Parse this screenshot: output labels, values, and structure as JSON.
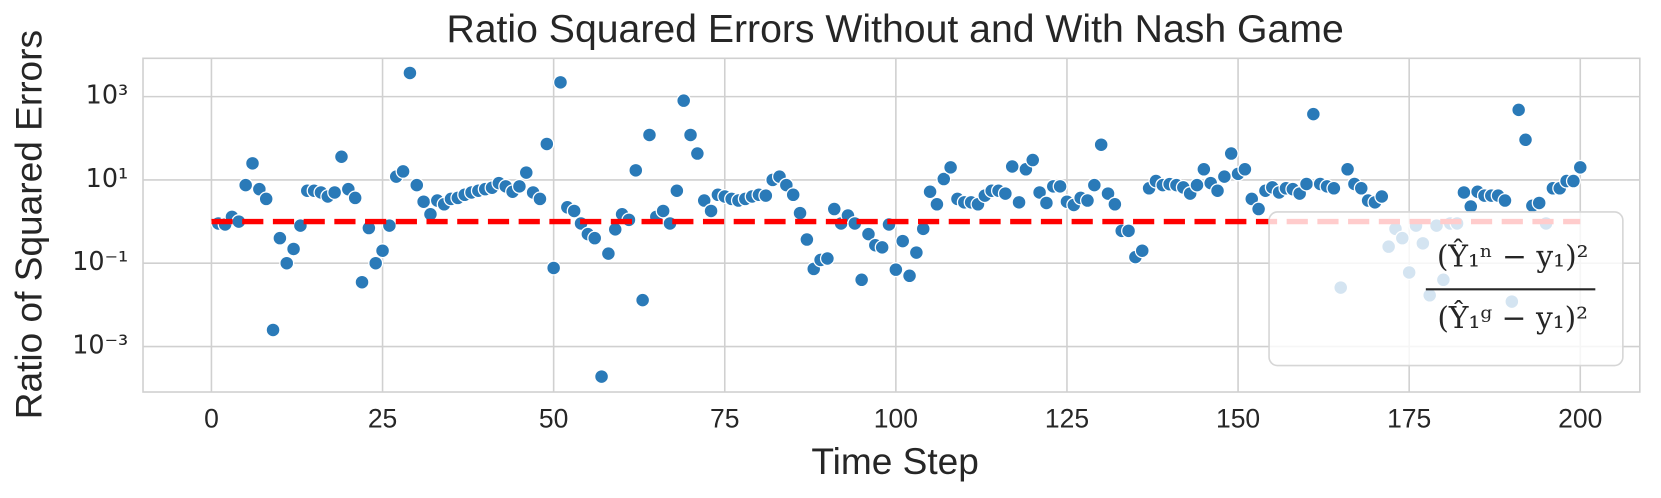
{
  "chart_data": {
    "type": "scatter",
    "title": "Ratio Squared Errors Without and With Nash Game",
    "x_label": "Time Step",
    "y_label": "Ratio of Squared Errors",
    "log_y": true,
    "grid": true,
    "xlim": [
      -10,
      208.7
    ],
    "ylim": [
      8.1e-05,
      8300
    ],
    "xticks": [
      0,
      25,
      50,
      75,
      100,
      125,
      150,
      175,
      200
    ],
    "yticks": [
      {
        "value": 0.001,
        "label": "10⁻³"
      },
      {
        "value": 0.1,
        "label": "10⁻¹"
      },
      {
        "value": 10,
        "label": "10¹"
      },
      {
        "value": 1000,
        "label": "10³"
      }
    ],
    "series": [
      {
        "color": "#2a7ab8",
        "x": [
          1,
          2,
          3,
          4,
          5,
          6,
          7,
          8,
          9,
          10,
          11,
          12,
          13,
          14,
          15,
          16,
          17,
          18,
          19,
          20,
          21,
          22,
          23,
          24,
          25,
          26,
          27,
          28,
          29,
          30,
          31,
          32,
          33,
          34,
          35,
          36,
          37,
          38,
          39,
          40,
          41,
          42,
          43,
          44,
          45,
          46,
          47,
          48,
          49,
          50,
          51,
          52,
          53,
          54,
          55,
          56,
          57,
          58,
          59,
          60,
          61,
          62,
          63,
          64,
          65,
          66,
          67,
          68,
          69,
          70,
          71,
          72,
          73,
          74,
          75,
          76,
          77,
          78,
          79,
          80,
          81,
          82,
          83,
          84,
          85,
          86,
          87,
          88,
          89,
          90,
          91,
          92,
          93,
          94,
          95,
          96,
          97,
          98,
          99,
          100,
          101,
          102,
          103,
          104,
          105,
          106,
          107,
          108,
          109,
          110,
          111,
          112,
          113,
          114,
          115,
          116,
          117,
          118,
          119,
          120,
          121,
          122,
          123,
          124,
          125,
          126,
          127,
          128,
          129,
          130,
          131,
          132,
          133,
          134,
          135,
          136,
          137,
          138,
          139,
          140,
          141,
          142,
          143,
          144,
          145,
          146,
          147,
          148,
          149,
          150,
          151,
          152,
          153,
          154,
          155,
          156,
          157,
          158,
          159,
          160,
          161,
          162,
          163,
          164,
          165,
          166,
          167,
          168,
          169,
          170,
          171,
          172,
          173,
          174,
          175,
          176,
          177,
          178,
          179,
          180,
          181,
          182,
          183,
          184,
          185,
          186,
          187,
          188,
          189,
          190,
          191,
          192,
          193,
          194,
          195,
          196,
          197,
          198,
          199,
          200
        ],
        "values": [
          0.9,
          0.85,
          1.3,
          1.0,
          7.5,
          25,
          6,
          3.5,
          0.0025,
          0.4,
          0.1,
          0.22,
          0.8,
          5.5,
          5.5,
          5,
          4,
          5,
          36,
          6,
          3.7,
          0.035,
          0.7,
          0.1,
          0.2,
          0.8,
          12,
          16,
          3700,
          7.5,
          3,
          1.5,
          3.2,
          2.6,
          3.5,
          3.7,
          4.4,
          5,
          5.5,
          6,
          6.5,
          8.4,
          7,
          5.2,
          7,
          15,
          5,
          3.5,
          73,
          0.077,
          2200,
          2.2,
          1.8,
          0.9,
          0.5,
          0.4,
          0.00019,
          0.17,
          0.65,
          1.5,
          1.1,
          17,
          0.013,
          120,
          1.3,
          1.8,
          0.9,
          5.5,
          800,
          120,
          43,
          3.2,
          1.8,
          4.4,
          4,
          3.5,
          3.2,
          3.5,
          4,
          4.4,
          4.2,
          10,
          12,
          7.5,
          4.4,
          1.6,
          0.37,
          0.073,
          0.12,
          0.13,
          2,
          0.9,
          1.4,
          0.9,
          0.04,
          0.5,
          0.27,
          0.24,
          0.85,
          0.07,
          0.34,
          0.05,
          0.18,
          0.67,
          5.2,
          2.6,
          10.5,
          20,
          3.5,
          2.9,
          2.9,
          2.6,
          4.2,
          5.5,
          5.5,
          4.7,
          21,
          2.9,
          18,
          30,
          5,
          2.8,
          7,
          7,
          3,
          2.5,
          3.7,
          3.2,
          7.5,
          70,
          4.7,
          2.6,
          0.6,
          0.6,
          0.14,
          0.2,
          6.3,
          9.4,
          7.5,
          7.9,
          7.5,
          6.6,
          4.7,
          7.5,
          18,
          8.4,
          5.5,
          12,
          43,
          14,
          18,
          3.5,
          2,
          5.5,
          6.6,
          5,
          6.3,
          6,
          4.7,
          8,
          380,
          8,
          7,
          6.3,
          0.026,
          18,
          8,
          6.3,
          3.2,
          2.9,
          4,
          0.25,
          0.67,
          0.4,
          0.06,
          0.8,
          0.3,
          0.017,
          0.8,
          0.04,
          0.9,
          0.9,
          5,
          2.3,
          5.2,
          4.2,
          4.2,
          4.2,
          3.2,
          0.012,
          480,
          92,
          2.4,
          2.8,
          0.9,
          6.3,
          6.3,
          9.4,
          9.4,
          20
        ]
      }
    ],
    "reference_line": {
      "y": 1,
      "x": [
        0,
        200
      ],
      "color": "#ff0000"
    },
    "legend": {
      "loc": "lower right",
      "numerator": "(Ŷ₁ⁿ − y₁)²",
      "denominator": "(Ŷ₁ᵍ − y₁)²"
    }
  }
}
